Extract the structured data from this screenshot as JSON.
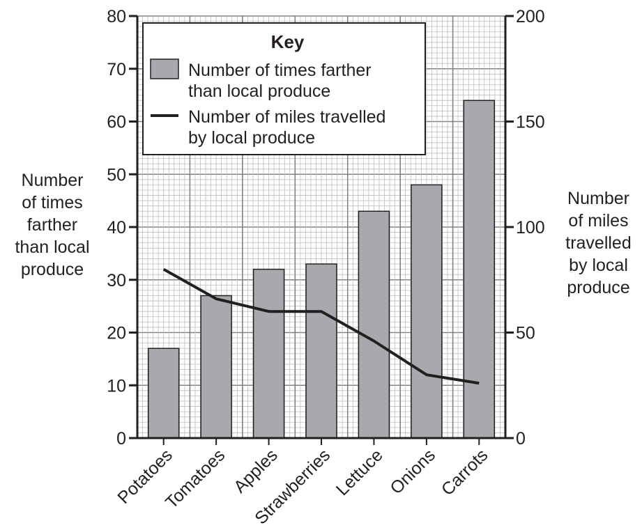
{
  "chart_data": {
    "type": "bar",
    "categories": [
      "Potatoes",
      "Tomatoes",
      "Apples",
      "Strawberries",
      "Lettuce",
      "Onions",
      "Carrots"
    ],
    "series": [
      {
        "name": "Number of times farther than local produce",
        "type": "bar",
        "axis": "left",
        "values": [
          17,
          27,
          32,
          33,
          43,
          48,
          64
        ]
      },
      {
        "name": "Number of miles travelled by local produce",
        "type": "line",
        "axis": "right",
        "values": [
          80,
          66,
          60,
          60,
          46,
          30,
          26
        ]
      }
    ],
    "y_left": {
      "label_lines": [
        "Number",
        "of times",
        "farther",
        "than local",
        "produce"
      ],
      "ylim": [
        0,
        80
      ],
      "ticks": [
        0,
        10,
        20,
        30,
        40,
        50,
        60,
        70,
        80
      ]
    },
    "y_right": {
      "label_lines": [
        "Number",
        "of miles",
        "travelled",
        "by local",
        "produce"
      ],
      "ylim": [
        0,
        200
      ],
      "ticks": [
        0,
        50,
        100,
        150,
        200
      ]
    },
    "legend": {
      "title": "Key",
      "placement": "top-left",
      "entries": [
        {
          "lines": [
            "Number of times farther",
            "than local produce"
          ],
          "marker": "bar"
        },
        {
          "lines": [
            "Number of miles travelled",
            "by local produce"
          ],
          "marker": "line"
        }
      ]
    },
    "grid": true,
    "colors": {
      "bar_fill": "#a7a9ac",
      "line": "#231f20",
      "grid_minor": "#bcbec0",
      "grid_major": "#808285",
      "axis": "#231f20"
    }
  }
}
